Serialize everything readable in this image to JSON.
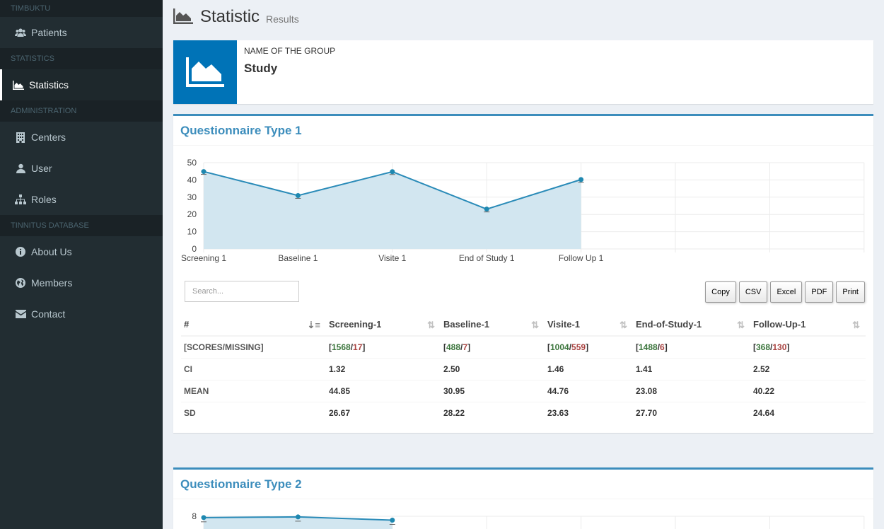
{
  "sidebar": {
    "sections": [
      {
        "header": "TIMBUKTU",
        "items": [
          {
            "label": "Patients",
            "icon": "users-icon"
          }
        ]
      },
      {
        "header": "STATISTICS",
        "items": [
          {
            "label": "Statistics",
            "icon": "area-chart-icon",
            "active": true
          }
        ]
      },
      {
        "header": "ADMINISTRATION",
        "items": [
          {
            "label": "Centers",
            "icon": "building-icon"
          },
          {
            "label": "User",
            "icon": "user-icon"
          },
          {
            "label": "Roles",
            "icon": "sitemap-icon"
          }
        ]
      },
      {
        "header": "TINNITUS DATABASE",
        "items": [
          {
            "label": "About Us",
            "icon": "info-icon"
          },
          {
            "label": "Members",
            "icon": "globe-icon"
          },
          {
            "label": "Contact",
            "icon": "envelope-icon"
          }
        ]
      }
    ]
  },
  "header": {
    "title": "Statistic",
    "subtitle": "Results"
  },
  "info_box": {
    "label": "NAME OF THE GROUP",
    "value": "Study"
  },
  "q1": {
    "title": "Questionnaire Type 1",
    "search_placeholder": "Search...",
    "buttons": [
      "Copy",
      "CSV",
      "Excel",
      "PDF",
      "Print"
    ],
    "columns": [
      "#",
      "Screening-1",
      "Baseline-1",
      "Visite-1",
      "End-of-Study-1",
      "Follow-Up-1"
    ],
    "rows": [
      {
        "label": "[SCORES/MISSING]",
        "cells": [
          {
            "scores": "1568",
            "missing": "17"
          },
          {
            "scores": "488",
            "missing": "7"
          },
          {
            "scores": "1004",
            "missing": "559"
          },
          {
            "scores": "1488",
            "missing": "6"
          },
          {
            "scores": "368",
            "missing": "130"
          }
        ]
      },
      {
        "label": "CI",
        "values": [
          "1.32",
          "2.50",
          "1.46",
          "1.41",
          "2.52"
        ]
      },
      {
        "label": "MEAN",
        "values": [
          "44.85",
          "30.95",
          "44.76",
          "23.08",
          "40.22"
        ]
      },
      {
        "label": "SD",
        "values": [
          "26.67",
          "28.22",
          "23.63",
          "27.70",
          "24.64"
        ]
      }
    ]
  },
  "q2": {
    "title": "Questionnaire Type 2",
    "y_top_tick": "8"
  },
  "chart_data": [
    {
      "type": "area",
      "categories": [
        "Screening 1",
        "Baseline 1",
        "Visite 1",
        "End of Study 1",
        "Follow Up 1"
      ],
      "values": [
        44.85,
        30.95,
        44.76,
        23.08,
        40.22
      ],
      "ylim": [
        0,
        50
      ],
      "yticks": [
        0,
        10,
        20,
        30,
        40,
        50
      ],
      "grid": true,
      "color": "#3c8dbc",
      "fill": "#d2e6f0"
    },
    {
      "type": "area",
      "values": [
        7.6,
        7.8,
        6.8
      ],
      "ylim": [
        0,
        8
      ],
      "yticks": [
        8
      ],
      "grid": true,
      "color": "#3c8dbc",
      "fill": "#d2e6f0"
    }
  ],
  "colors": {
    "sidebar_bg": "#222d32",
    "accent": "#3c8dbc",
    "info_icon_bg": "#0073b7",
    "ok": "#3c763d",
    "missing": "#a94442"
  }
}
